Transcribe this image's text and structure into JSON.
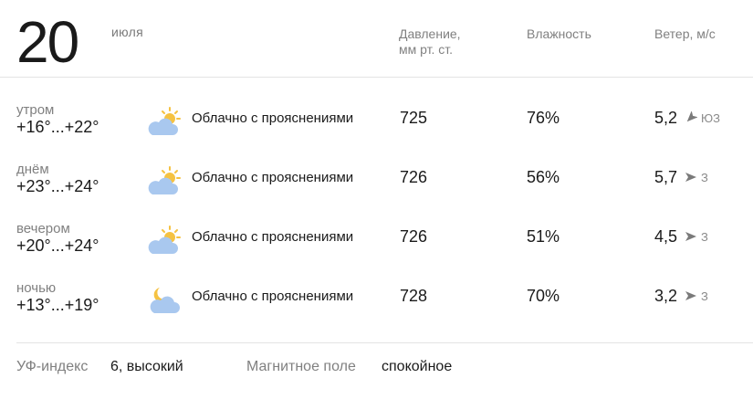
{
  "header": {
    "day": "20",
    "month": "июля",
    "columns": {
      "pressure_line1": "Давление,",
      "pressure_line2": "мм рт. ст.",
      "humidity": "Влажность",
      "wind": "Ветер, м/с"
    }
  },
  "rows": [
    {
      "part": "утром",
      "temp": "+16°...+22°",
      "icon": "partly-cloudy-day-icon",
      "condition": "Облачно с прояснениями",
      "pressure": "725",
      "humidity": "76%",
      "wind_speed": "5,2",
      "wind_dir_icon": "wind-direction-arrow-icon",
      "wind_dir": "ЮЗ"
    },
    {
      "part": "днём",
      "temp": "+23°...+24°",
      "icon": "partly-cloudy-day-icon",
      "condition": "Облачно с прояснениями",
      "pressure": "726",
      "humidity": "56%",
      "wind_speed": "5,7",
      "wind_dir_icon": "wind-direction-arrow-icon",
      "wind_dir": "З"
    },
    {
      "part": "вечером",
      "temp": "+20°...+24°",
      "icon": "partly-cloudy-day-icon",
      "condition": "Облачно с прояснениями",
      "pressure": "726",
      "humidity": "51%",
      "wind_speed": "4,5",
      "wind_dir_icon": "wind-direction-arrow-icon",
      "wind_dir": "З"
    },
    {
      "part": "ночью",
      "temp": "+13°...+19°",
      "icon": "partly-cloudy-night-icon",
      "condition": "Облачно с прояснениями",
      "pressure": "728",
      "humidity": "70%",
      "wind_speed": "3,2",
      "wind_dir_icon": "wind-direction-arrow-icon",
      "wind_dir": "З"
    }
  ],
  "footer": {
    "uv_label": "УФ-индекс",
    "uv_value": "6, высокий",
    "magnetic_label": "Магнитное поле",
    "magnetic_value": "спокойное"
  },
  "colors": {
    "cloud": "#a9c8ef",
    "sun": "#f5c242",
    "moon": "#f5c242",
    "text_primary": "#1a1a1a",
    "text_secondary": "#808080"
  }
}
